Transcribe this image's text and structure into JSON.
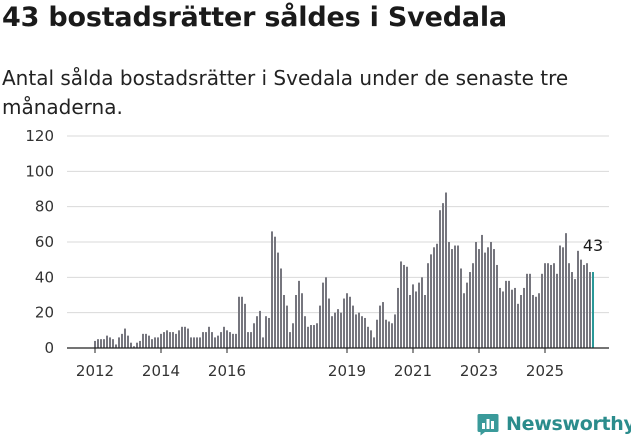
{
  "header": {
    "title": "43 bostadsrätter såldes i Svedala",
    "subtitle": "Antal sålda bostadsrätter i Svedala under de senaste tre månaderna."
  },
  "brand": {
    "name": "Newsworthy",
    "color": "#3a9a9a"
  },
  "colors": {
    "bar": "#76767e",
    "highlight": "#2a9898",
    "grid": "#d9d9d9",
    "axis": "#222222"
  },
  "chart_data": {
    "type": "bar",
    "title": "43 bostadsrätter såldes i Svedala",
    "subtitle": "Antal sålda bostadsrätter i Svedala under de senaste tre månaderna.",
    "xlabel": "",
    "ylabel": "",
    "ylim": [
      0,
      120
    ],
    "yticks": [
      0,
      20,
      40,
      60,
      80,
      100,
      120
    ],
    "xticks": [
      "2012",
      "2014",
      "2016",
      "2019",
      "2021",
      "2023",
      "2025"
    ],
    "xtick_index": [
      0,
      22,
      44,
      84,
      106,
      128,
      150
    ],
    "grid": true,
    "last_value_label": "43",
    "values": [
      4,
      5,
      5,
      5,
      7,
      6,
      5,
      2,
      6,
      8,
      11,
      7,
      3,
      1,
      3,
      4,
      8,
      8,
      7,
      5,
      6,
      6,
      8,
      9,
      10,
      9,
      9,
      8,
      10,
      12,
      12,
      11,
      6,
      6,
      6,
      6,
      9,
      9,
      12,
      9,
      6,
      7,
      9,
      12,
      10,
      9,
      8,
      8,
      29,
      29,
      25,
      9,
      9,
      14,
      18,
      21,
      6,
      18,
      17,
      66,
      63,
      54,
      45,
      30,
      24,
      9,
      14,
      30,
      38,
      31,
      18,
      12,
      13,
      13,
      14,
      24,
      37,
      40,
      28,
      18,
      20,
      22,
      20,
      28,
      31,
      29,
      24,
      19,
      20,
      18,
      17,
      12,
      10,
      6,
      16,
      24,
      26,
      16,
      15,
      14,
      19,
      34,
      49,
      47,
      46,
      30,
      36,
      32,
      37,
      40,
      30,
      48,
      53,
      57,
      59,
      78,
      82,
      88,
      60,
      56,
      58,
      58,
      45,
      31,
      37,
      43,
      48,
      60,
      56,
      64,
      54,
      57,
      60,
      56,
      47,
      34,
      32,
      38,
      38,
      33,
      34,
      25,
      30,
      34,
      42,
      42,
      30,
      29,
      31,
      42,
      48,
      48,
      47,
      48,
      42,
      58,
      57,
      65,
      48,
      43,
      39,
      55,
      50,
      47,
      48,
      43,
      43
    ]
  }
}
